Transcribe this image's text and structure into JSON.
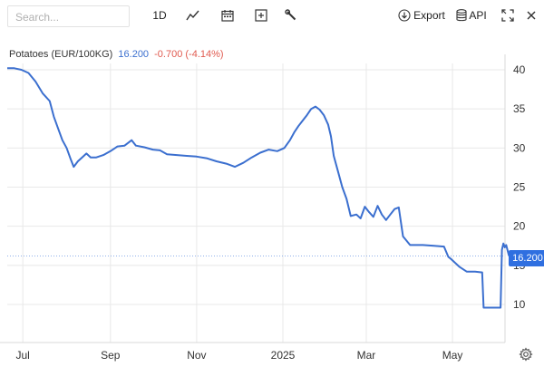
{
  "toolbar": {
    "search_placeholder": "Search...",
    "interval_label": "1D",
    "export_label": "Export",
    "api_label": "API"
  },
  "legend": {
    "name": "Potatoes (EUR/100KG)",
    "last": "16.200",
    "change": "-0.700 (-4.14%)"
  },
  "last_badge": "16.200",
  "colors": {
    "line": "#3b6fcf",
    "badge": "#2f6fe0",
    "change_negative": "#e05a4f",
    "grid": "#e8e8e8"
  },
  "chart_data": {
    "type": "line",
    "series": [
      {
        "name": "Potatoes (EUR/100KG)",
        "points": [
          [
            "2024-06-20",
            40.2
          ],
          [
            "2024-06-25",
            40.2
          ],
          [
            "2024-06-30",
            40.0
          ],
          [
            "2024-07-05",
            39.6
          ],
          [
            "2024-07-10",
            38.5
          ],
          [
            "2024-07-15",
            37.0
          ],
          [
            "2024-07-20",
            36.0
          ],
          [
            "2024-07-23",
            34.0
          ],
          [
            "2024-07-26",
            32.5
          ],
          [
            "2024-07-29",
            31.0
          ],
          [
            "2024-08-01",
            30.0
          ],
          [
            "2024-08-04",
            28.5
          ],
          [
            "2024-08-06",
            27.6
          ],
          [
            "2024-08-09",
            28.3
          ],
          [
            "2024-08-12",
            28.8
          ],
          [
            "2024-08-15",
            29.3
          ],
          [
            "2024-08-18",
            28.8
          ],
          [
            "2024-08-22",
            28.8
          ],
          [
            "2024-08-27",
            29.1
          ],
          [
            "2024-09-01",
            29.6
          ],
          [
            "2024-09-06",
            30.2
          ],
          [
            "2024-09-11",
            30.3
          ],
          [
            "2024-09-16",
            31.0
          ],
          [
            "2024-09-19",
            30.3
          ],
          [
            "2024-09-25",
            30.1
          ],
          [
            "2024-10-01",
            29.8
          ],
          [
            "2024-10-06",
            29.7
          ],
          [
            "2024-10-11",
            29.2
          ],
          [
            "2024-10-18",
            29.1
          ],
          [
            "2024-10-25",
            29.0
          ],
          [
            "2024-11-01",
            28.9
          ],
          [
            "2024-11-08",
            28.7
          ],
          [
            "2024-11-15",
            28.3
          ],
          [
            "2024-11-22",
            28.0
          ],
          [
            "2024-11-28",
            27.6
          ],
          [
            "2024-12-04",
            28.1
          ],
          [
            "2024-12-10",
            28.8
          ],
          [
            "2024-12-16",
            29.4
          ],
          [
            "2024-12-22",
            29.8
          ],
          [
            "2024-12-28",
            29.6
          ],
          [
            "2025-01-02",
            30.0
          ],
          [
            "2025-01-06",
            31.0
          ],
          [
            "2025-01-09",
            32.0
          ],
          [
            "2025-01-12",
            32.8
          ],
          [
            "2025-01-15",
            33.5
          ],
          [
            "2025-01-18",
            34.2
          ],
          [
            "2025-01-21",
            35.0
          ],
          [
            "2025-01-24",
            35.3
          ],
          [
            "2025-01-27",
            34.9
          ],
          [
            "2025-01-30",
            34.2
          ],
          [
            "2025-02-02",
            33.0
          ],
          [
            "2025-02-04",
            31.5
          ],
          [
            "2025-02-06",
            29.0
          ],
          [
            "2025-02-09",
            27.0
          ],
          [
            "2025-02-12",
            25.0
          ],
          [
            "2025-02-15",
            23.5
          ],
          [
            "2025-02-18",
            21.3
          ],
          [
            "2025-02-22",
            21.5
          ],
          [
            "2025-02-25",
            21.0
          ],
          [
            "2025-02-28",
            22.5
          ],
          [
            "2025-03-03",
            21.8
          ],
          [
            "2025-03-06",
            21.2
          ],
          [
            "2025-03-09",
            22.6
          ],
          [
            "2025-03-12",
            21.5
          ],
          [
            "2025-03-15",
            20.8
          ],
          [
            "2025-03-18",
            21.5
          ],
          [
            "2025-03-21",
            22.2
          ],
          [
            "2025-03-24",
            22.4
          ],
          [
            "2025-03-27",
            18.7
          ],
          [
            "2025-04-01",
            17.6
          ],
          [
            "2025-04-10",
            17.6
          ],
          [
            "2025-04-18",
            17.5
          ],
          [
            "2025-04-25",
            17.4
          ],
          [
            "2025-04-28",
            16.1
          ],
          [
            "2025-04-30",
            15.8
          ],
          [
            "2025-05-03",
            15.3
          ],
          [
            "2025-05-06",
            14.8
          ],
          [
            "2025-05-11",
            14.2
          ],
          [
            "2025-05-17",
            14.2
          ],
          [
            "2025-05-22",
            14.1
          ],
          [
            "2025-05-23",
            9.6
          ],
          [
            "2025-05-28",
            9.6
          ],
          [
            "2025-06-02",
            9.6
          ],
          [
            "2025-06-04",
            9.6
          ],
          [
            "2025-06-05",
            17.0
          ],
          [
            "2025-06-06",
            17.8
          ],
          [
            "2025-06-07",
            17.3
          ],
          [
            "2025-06-08",
            17.6
          ],
          [
            "2025-06-10",
            16.2
          ]
        ]
      }
    ],
    "x_ticks": [
      "Jul",
      "Sep",
      "Nov",
      "2025",
      "Mar",
      "May"
    ],
    "y_ticks": [
      10,
      15,
      20,
      25,
      30,
      35,
      40
    ],
    "ylim": [
      6,
      42
    ],
    "xlim": [
      "2024-06-20",
      "2025-06-20"
    ],
    "last_value": 16.2,
    "grid": true,
    "y_axis_side": "right"
  }
}
